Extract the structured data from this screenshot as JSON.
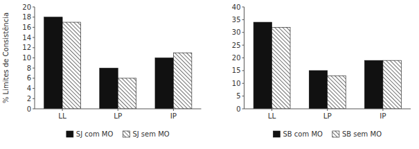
{
  "chart_data": [
    {
      "type": "bar",
      "categories": [
        "LL",
        "LP",
        "IP"
      ],
      "series": [
        {
          "name": "SJ com MO",
          "color": "#111111",
          "values": [
            18,
            8,
            10
          ]
        },
        {
          "name": "SJ sem MO",
          "color": "#ffffff",
          "values": [
            17,
            6,
            11
          ]
        }
      ],
      "y_label": "% Limites de Consistência",
      "ylim": [
        0,
        20
      ],
      "yticks": [
        0,
        2,
        4,
        6,
        8,
        10,
        12,
        14,
        16,
        18,
        20
      ],
      "grid": false,
      "legend": "bottom"
    },
    {
      "type": "bar",
      "categories": [
        "LL",
        "LP",
        "IP"
      ],
      "series": [
        {
          "name": "SB com MO",
          "color": "#111111",
          "values": [
            34,
            15,
            19
          ]
        },
        {
          "name": "SB sem MO",
          "color": "#ffffff",
          "values": [
            32,
            13,
            19
          ]
        }
      ],
      "ylim": [
        0,
        40
      ],
      "yticks": [
        0,
        5,
        10,
        15,
        20,
        25,
        30,
        35,
        40
      ],
      "grid": false,
      "legend": "bottom"
    }
  ]
}
